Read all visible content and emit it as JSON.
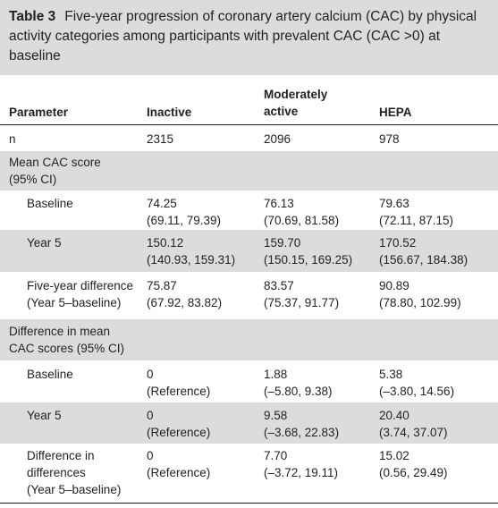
{
  "caption": {
    "label": "Table 3",
    "text": "Five-year progression of coronary artery calcium (CAC) by physical activity categories among participants with prevalent CAC (CAC >0) at baseline"
  },
  "headers": [
    "Parameter",
    "Inactive",
    "Moderately\nactive",
    "HEPA"
  ],
  "rows": [
    {
      "param": "n",
      "inactive": "2315",
      "moderate": "2096",
      "hepa": "978"
    },
    {
      "param": "Mean CAC score\n(95% CI)",
      "inactive": "",
      "moderate": "",
      "hepa": ""
    },
    {
      "param": "Baseline",
      "inactive": "74.25\n(69.11, 79.39)",
      "moderate": "76.13\n(70.69, 81.58)",
      "hepa": "79.63\n(72.11, 87.15)"
    },
    {
      "param": "Year 5",
      "inactive": "150.12\n(140.93, 159.31)",
      "moderate": "159.70\n(150.15, 169.25)",
      "hepa": "170.52\n(156.67, 184.38)"
    },
    {
      "param": "Five-year difference\n(Year 5–baseline)",
      "inactive": "75.87\n(67.92, 83.82)",
      "moderate": "83.57\n(75.37, 91.77)",
      "hepa": "90.89\n(78.80, 102.99)"
    },
    {
      "param": "Difference in mean\nCAC scores (95% CI)",
      "inactive": "",
      "moderate": "",
      "hepa": ""
    },
    {
      "param": "Baseline",
      "inactive": "0\n(Reference)",
      "moderate": "1.88\n(–5.80, 9.38)",
      "hepa": "5.38\n(–3.80, 14.56)"
    },
    {
      "param": "Year 5",
      "inactive": "0\n(Reference)",
      "moderate": "9.58\n(–3.68, 22.83)",
      "hepa": "20.40\n(3.74, 37.07)"
    },
    {
      "param": "Difference in\ndifferences\n(Year 5–baseline)",
      "inactive": "0\n(Reference)",
      "moderate": "7.70\n(–3.72, 19.11)",
      "hepa": "15.02\n(0.56, 29.49)"
    }
  ],
  "colors": {
    "shade": "#dcdcde",
    "text": "#231f20"
  }
}
